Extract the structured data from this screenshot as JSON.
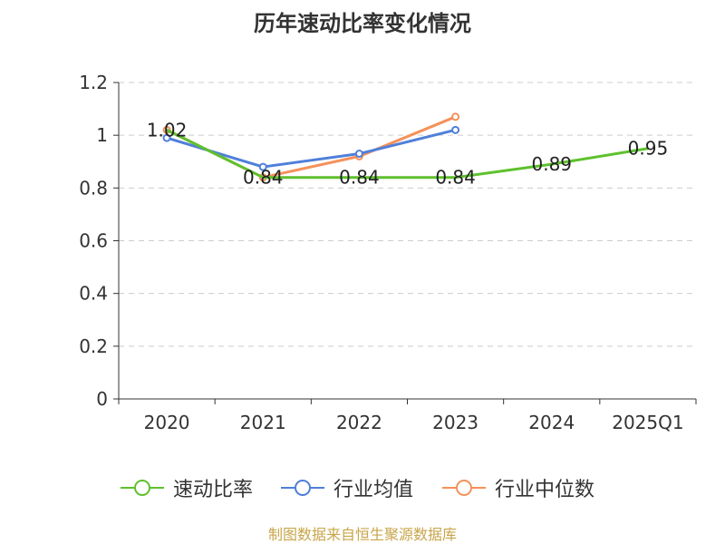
{
  "chart_data": {
    "type": "line",
    "title": "历年速动比率变化情况",
    "categories": [
      "2020",
      "2021",
      "2022",
      "2023",
      "2024",
      "2025Q1"
    ],
    "ylim": [
      0,
      1.2
    ],
    "yticks": [
      "0",
      "0.2",
      "0.4",
      "0.6",
      "0.8",
      "1",
      "1.2"
    ],
    "grid": true,
    "legend_position": "bottom",
    "series": [
      {
        "name": "速动比率",
        "color": "#5ec12d",
        "values": [
          1.02,
          0.84,
          0.84,
          0.84,
          0.89,
          0.95
        ],
        "labels": [
          "1.02",
          "0.84",
          "0.84",
          "0.84",
          "0.89",
          "0.95"
        ],
        "markers": false
      },
      {
        "name": "行业均值",
        "color": "#4f7fd9",
        "values": [
          0.99,
          0.88,
          0.93,
          1.02,
          null,
          null
        ],
        "markers": true
      },
      {
        "name": "行业中位数",
        "color": "#f5915a",
        "values": [
          1.02,
          0.84,
          0.92,
          1.07,
          null,
          null
        ],
        "markers": true
      }
    ]
  },
  "footer": {
    "source": "制图数据来自恒生聚源数据库"
  }
}
